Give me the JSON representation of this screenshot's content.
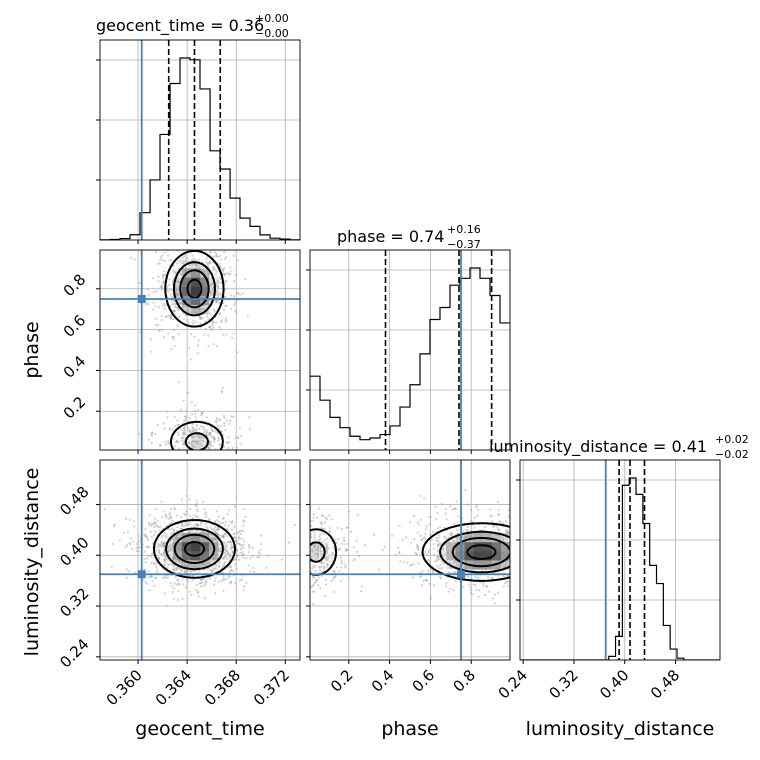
{
  "chart_data": {
    "type": "corner",
    "parameters": [
      "geocent_time",
      "phase",
      "luminosity_distance"
    ],
    "truths": {
      "geocent_time": 0.3603,
      "phase": 0.75,
      "luminosity_distance": 0.37
    },
    "truth_color": "#4682b4",
    "grid": true,
    "titles": {
      "geocent_time": {
        "label": "geocent_time = 0.36",
        "sup": "+0.00",
        "sub": "−0.00"
      },
      "phase": {
        "label": "phase = 0.74",
        "sup": "+0.16",
        "sub": "−0.37"
      },
      "luminosity_distance": {
        "label": "luminosity_distance = 0.41",
        "sup": "+0.02",
        "sub": "−0.02"
      }
    },
    "axes": {
      "geocent_time": {
        "range": [
          0.3569,
          0.3732
        ],
        "ticks": [
          0.36,
          0.364,
          0.368,
          0.372
        ],
        "tick_labels": [
          "0.360",
          "0.364",
          "0.368",
          "0.372"
        ],
        "xlabel": "geocent_time"
      },
      "phase": {
        "range": [
          0.01,
          0.99
        ],
        "ticks": [
          0.2,
          0.4,
          0.6,
          0.8
        ],
        "tick_labels": [
          "0.2",
          "0.4",
          "0.6",
          "0.8"
        ],
        "xlabel": "phase",
        "ylabel": "phase"
      },
      "luminosity_distance": {
        "range": [
          0.235,
          0.55
        ],
        "ticks": [
          0.24,
          0.32,
          0.4,
          0.48
        ],
        "tick_labels": [
          "0.24",
          "0.32",
          "0.40",
          "0.48"
        ],
        "xlabel": "luminosity_distance",
        "ylabel": "luminosity_distance"
      }
    },
    "histograms": {
      "geocent_time": {
        "bin_edges": [
          0.3569,
          0.35772,
          0.35853,
          0.35935,
          0.36016,
          0.36098,
          0.36179,
          0.36261,
          0.36342,
          0.36424,
          0.36505,
          0.36587,
          0.36668,
          0.3675,
          0.36831,
          0.36913,
          0.36994,
          0.37076,
          0.37157,
          0.37239,
          0.3732
        ],
        "counts": [
          1,
          3,
          8,
          29,
          150,
          330,
          580,
          860,
          1000,
          990,
          830,
          490,
          390,
          230,
          120,
          75,
          28,
          10,
          5,
          1
        ],
        "quantiles": [
          0.3625,
          0.3646,
          0.3667
        ]
      },
      "phase": {
        "bin_edges": [
          0.01,
          0.059,
          0.108,
          0.157,
          0.206,
          0.255,
          0.304,
          0.353,
          0.402,
          0.451,
          0.5,
          0.549,
          0.598,
          0.647,
          0.696,
          0.745,
          0.794,
          0.843,
          0.892,
          0.941,
          0.99
        ],
        "counts": [
          430,
          290,
          190,
          130,
          80,
          60,
          70,
          90,
          140,
          250,
          380,
          560,
          760,
          830,
          960,
          1000,
          1060,
          1000,
          900,
          740
        ],
        "quantiles": [
          0.38,
          0.74,
          0.9
        ]
      },
      "luminosity_distance": {
        "bin_edges": [
          0.235,
          0.24575,
          0.2565,
          0.26725,
          0.278,
          0.28875,
          0.2995,
          0.31025,
          0.321,
          0.33175,
          0.3425,
          0.35325,
          0.364,
          0.37475,
          0.3855,
          0.39625,
          0.407,
          0.41775,
          0.4285,
          0.43925,
          0.45,
          0.46075,
          0.4715,
          0.48225,
          0.493,
          0.50375,
          0.5145,
          0.52525,
          0.536,
          0.54675,
          0.55
        ],
        "counts": [
          0,
          0,
          0,
          0,
          0,
          0,
          0,
          0,
          0,
          0,
          0,
          0,
          0,
          2,
          13,
          96,
          100,
          91,
          75,
          52,
          42,
          19,
          6,
          1,
          0,
          0,
          0,
          0,
          0,
          0
        ],
        "quantiles": [
          0.3911,
          0.4083,
          0.4311
        ]
      }
    },
    "contours_2d": {
      "phase_vs_geocent_time": [
        {
          "center": [
            0.3646,
            0.8
          ],
          "sd": [
            0.00115,
            0.09
          ],
          "weight": 1.0
        },
        {
          "center": [
            0.3648,
            0.05
          ],
          "sd": [
            0.0013,
            0.06
          ],
          "weight": 0.45
        }
      ],
      "luminosity_distance_vs_geocent_time": [
        {
          "center": [
            0.3646,
            0.41
          ],
          "sd": [
            0.0016,
            0.022
          ],
          "weight": 1.0
        }
      ],
      "luminosity_distance_vs_phase": [
        {
          "center": [
            0.85,
            0.405
          ],
          "sd": [
            0.14,
            0.022
          ],
          "weight": 1.0
        },
        {
          "center": [
            0.04,
            0.405
          ],
          "sd": [
            0.06,
            0.022
          ],
          "weight": 0.45
        }
      ]
    }
  }
}
